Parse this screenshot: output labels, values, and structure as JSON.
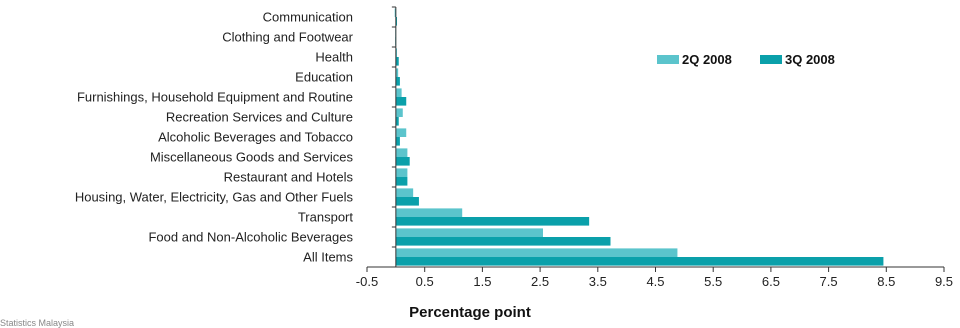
{
  "chart_data": {
    "type": "bar",
    "orientation": "horizontal",
    "categories": [
      "Communication",
      "Clothing and Footwear",
      "Health",
      "Education",
      "Furnishings, Household Equipment and Routine",
      "Recreation Services and Culture",
      "Alcoholic Beverages and Tobacco",
      "Miscellaneous Goods and Services",
      "Restaurant and Hotels",
      "Housing, Water, Electricity, Gas and Other Fuels",
      "Transport",
      "Food and Non-Alcoholic Beverages",
      "All Items"
    ],
    "series": [
      {
        "name": "2Q 2008",
        "color": "#5bc4cc",
        "values": [
          -0.02,
          -0.01,
          0.02,
          0.04,
          0.1,
          0.12,
          0.18,
          0.2,
          0.2,
          0.3,
          1.15,
          2.55,
          4.88
        ]
      },
      {
        "name": "3Q 2008",
        "color": "#0aa0aa",
        "values": [
          0.02,
          -0.01,
          0.05,
          0.07,
          0.18,
          0.05,
          0.07,
          0.24,
          0.2,
          0.4,
          3.35,
          3.72,
          8.45
        ]
      }
    ],
    "xlabel": "Percentage point",
    "ylabel": "",
    "xlim": [
      -0.5,
      9.5
    ],
    "ticks": [
      "-0.5",
      "0.5",
      "1.5",
      "2.5",
      "3.5",
      "4.5",
      "5.5",
      "6.5",
      "7.5",
      "8.5",
      "9.5"
    ],
    "legend_position": "top-right",
    "grid": false
  },
  "source_text": "Statistics Malaysia"
}
